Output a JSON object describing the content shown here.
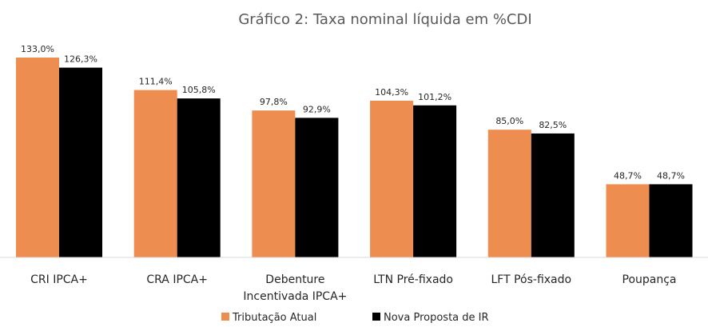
{
  "chart_data": {
    "type": "bar",
    "title": "Gráfico 2: Taxa nominal líquida em %CDI",
    "categories": [
      [
        "CRI IPCA+"
      ],
      [
        "CRA IPCA+"
      ],
      [
        "Debenture",
        "Incentivada IPCA+"
      ],
      [
        "LTN Pré-fixado"
      ],
      [
        "LFT Pós-fixado"
      ],
      [
        "Poupança"
      ]
    ],
    "series": [
      {
        "name": "Tributação Atual",
        "color": "#ED8D50",
        "values": [
          133.0,
          111.4,
          97.8,
          104.3,
          85.0,
          48.7
        ],
        "labels": [
          "133,0%",
          "111,4%",
          "97,8%",
          "104,3%",
          "85,0%",
          "48,7%"
        ]
      },
      {
        "name": "Nova Proposta de IR",
        "color": "#000000",
        "values": [
          126.3,
          105.8,
          92.9,
          101.2,
          82.5,
          48.7
        ],
        "labels": [
          "126,3%",
          "105,8%",
          "92,9%",
          "101,2%",
          "82,5%",
          "48,7%"
        ]
      }
    ],
    "ylim": [
      0,
      133
    ],
    "grid": false,
    "legend_position": "bottom-center",
    "axis_color": "#D9D9D9"
  }
}
